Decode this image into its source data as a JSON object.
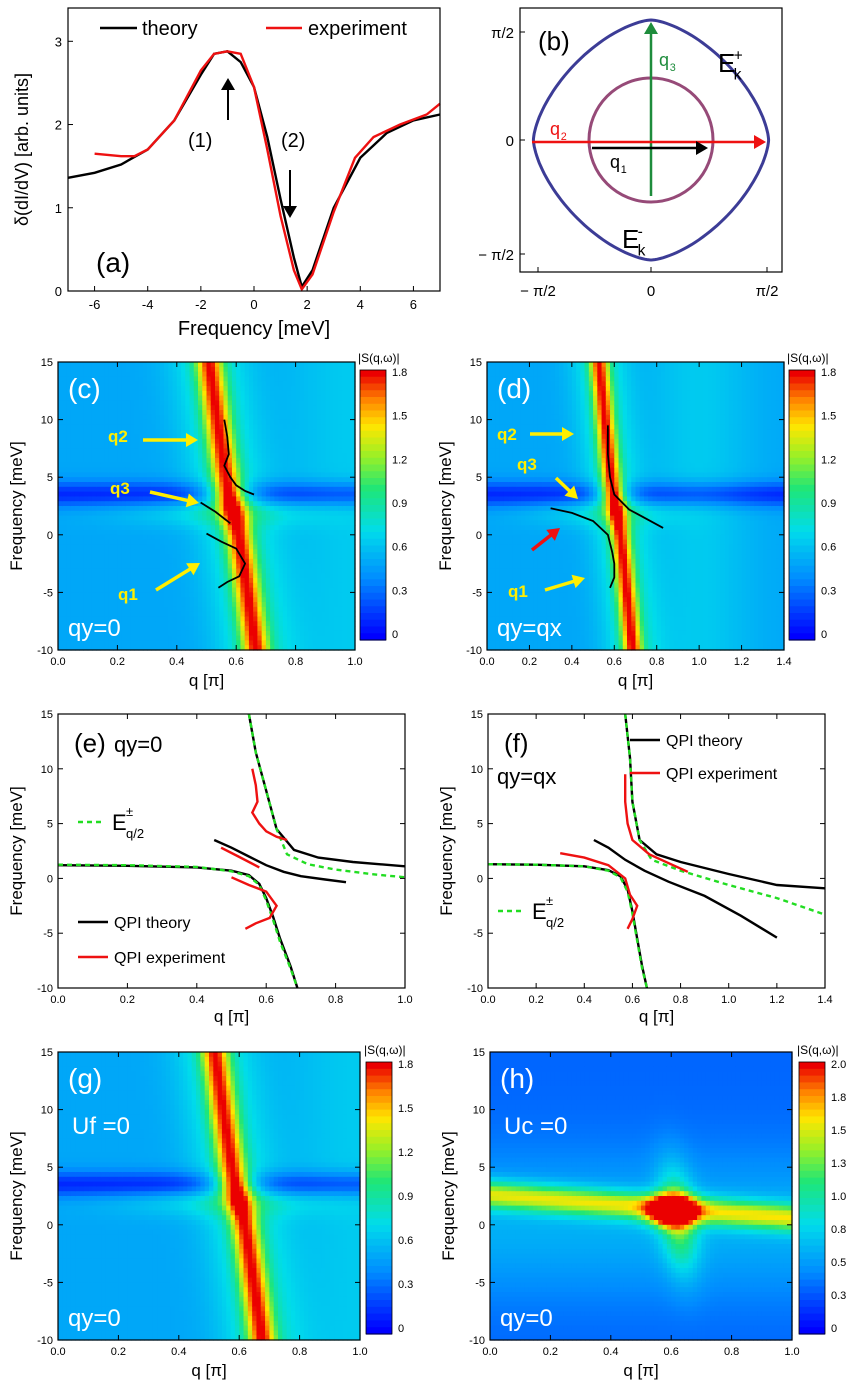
{
  "chart_data": [
    {
      "id": "a",
      "type": "line",
      "panel_label": "(a)",
      "xlabel": "Frequency [meV]",
      "ylabel": "δ(dI/dV) [arb. units]",
      "xlim": [
        -7,
        7
      ],
      "ylim": [
        0,
        3.4
      ],
      "xticks": [
        -6,
        -4,
        -2,
        0,
        2,
        4,
        6
      ],
      "yticks": [
        0,
        1,
        2,
        3
      ],
      "series": [
        {
          "name": "theory",
          "color": "#000000",
          "x": [
            -7,
            -6,
            -5,
            -4,
            -3,
            -2,
            -1.5,
            -1,
            -0.5,
            0,
            0.5,
            1,
            1.5,
            1.8,
            2.2,
            3,
            4,
            5,
            6,
            7
          ],
          "y": [
            1.36,
            1.42,
            1.52,
            1.7,
            2.05,
            2.6,
            2.85,
            2.88,
            2.75,
            2.45,
            1.85,
            1.1,
            0.4,
            0.05,
            0.25,
            1.0,
            1.6,
            1.9,
            2.05,
            2.12
          ]
        },
        {
          "name": "experiment",
          "color": "#ee1111",
          "x": [
            -6,
            -5,
            -4.5,
            -4,
            -3,
            -2,
            -1.5,
            -1,
            -0.5,
            0,
            0.5,
            1,
            1.5,
            1.8,
            2.2,
            3,
            3.8,
            4.5,
            5.5,
            6.5,
            7
          ],
          "y": [
            1.65,
            1.62,
            1.62,
            1.7,
            2.05,
            2.65,
            2.85,
            2.88,
            2.85,
            2.45,
            1.7,
            0.9,
            0.25,
            0.02,
            0.2,
            0.95,
            1.6,
            1.85,
            2.0,
            2.12,
            2.25
          ]
        }
      ],
      "annotations": [
        "(1)",
        "(2)"
      ],
      "legend": "top"
    },
    {
      "id": "b",
      "type": "diagram",
      "panel_label": "(b)",
      "xticks": [
        "− π/2",
        "0",
        "π/2"
      ],
      "yticks": [
        "π/2",
        "0",
        "− π/2"
      ],
      "labels": {
        "outer": "E",
        "outer_sub": "k",
        "outer_sup": "+",
        "inner": "E",
        "inner_sub": "k",
        "inner_sup": "-",
        "q1": "q",
        "q1_sub": "1",
        "q2": "q",
        "q2_sub": "2",
        "q3": "q",
        "q3_sub": "3"
      },
      "colors": {
        "outer": "#3c3c96",
        "inner": "#964a78",
        "q1": "#000000",
        "q2": "#ee1111",
        "q3": "#1e8c3c"
      }
    },
    {
      "id": "c",
      "type": "heatmap",
      "panel_label": "(c)",
      "xlabel": "q [π]",
      "ylabel": "Frequency [meV]",
      "xlim": [
        0,
        1.0
      ],
      "ylim": [
        -10,
        15
      ],
      "xticks": [
        "0.0",
        "0.2",
        "0.4",
        "0.6",
        "0.8",
        "1.0"
      ],
      "yticks": [
        "-10",
        "-5",
        "0",
        "5",
        "10",
        "15"
      ],
      "colorbar_title": "|S(q,ω)|",
      "colorbar_ticks": [
        "1.8",
        "1.5",
        "1.2",
        "0.9",
        "0.6",
        "0.3",
        "0"
      ],
      "corner_text": "qy=0",
      "arrows": [
        {
          "label": "q2",
          "color": "yellow"
        },
        {
          "label": "q3",
          "color": "yellow"
        },
        {
          "label": "q1",
          "color": "yellow"
        }
      ],
      "band_x0": 0.59,
      "band_k": 20,
      "overlay": [
        {
          "x": [
            0.56,
            0.57,
            0.575,
            0.56,
            0.58,
            0.6,
            0.63,
            0.66
          ],
          "y": [
            10,
            8.5,
            7,
            6,
            5,
            4.3,
            3.8,
            3.5
          ]
        },
        {
          "x": [
            0.48,
            0.53,
            0.58
          ],
          "y": [
            2.8,
            2.0,
            1.0
          ]
        },
        {
          "x": [
            0.5,
            0.55,
            0.6,
            0.63,
            0.61,
            0.57,
            0.54
          ],
          "y": [
            0.1,
            -0.6,
            -1.2,
            -2.5,
            -3.6,
            -4.1,
            -4.6
          ]
        }
      ]
    },
    {
      "id": "d",
      "type": "heatmap",
      "panel_label": "(d)",
      "xlabel": "q [π]",
      "ylabel": "Frequency [meV]",
      "xlim": [
        0,
        1.4
      ],
      "ylim": [
        -10,
        15
      ],
      "xticks": [
        "0.0",
        "0.2",
        "0.4",
        "0.6",
        "0.8",
        "1.0",
        "1.2",
        "1.4"
      ],
      "yticks": [
        "-10",
        "-5",
        "0",
        "5",
        "10",
        "15"
      ],
      "colorbar_title": "|S(q,ω)|",
      "colorbar_ticks": [
        "1.8",
        "1.5",
        "1.2",
        "0.9",
        "0.6",
        "0.3",
        "0"
      ],
      "corner_text": "qy=qx",
      "arrows": [
        {
          "label": "q2",
          "color": "yellow"
        },
        {
          "label": "q3",
          "color": "yellow"
        },
        {
          "label": "q1",
          "color": "yellow"
        },
        {
          "label": "",
          "color": "red"
        }
      ],
      "band_x0": 0.61,
      "band_k": 18,
      "overlay": [
        {
          "x": [
            0.57,
            0.57,
            0.58,
            0.6,
            0.67,
            0.76,
            0.83
          ],
          "y": [
            9.5,
            7,
            5,
            3.5,
            2.2,
            1.3,
            0.6
          ]
        },
        {
          "x": [
            0.3,
            0.4,
            0.5,
            0.57,
            0.59,
            0.6,
            0.6,
            0.58
          ],
          "y": [
            2.3,
            1.9,
            1.2,
            0,
            -1.5,
            -2.5,
            -3.7,
            -4.6
          ]
        }
      ]
    },
    {
      "id": "e",
      "type": "line",
      "panel_label": "(e)",
      "xlabel": "q [π]",
      "ylabel": "Frequency [meV]",
      "xlim": [
        0,
        1.0
      ],
      "ylim": [
        -10,
        15
      ],
      "xticks": [
        "0.0",
        "0.2",
        "0.4",
        "0.6",
        "0.8",
        "1.0"
      ],
      "yticks": [
        "-10",
        "-5",
        "0",
        "5",
        "10",
        "15"
      ],
      "corner_text": "qy=0",
      "series": [
        {
          "name": "QPI theory",
          "color": "#000000",
          "x": [
            0.0,
            0.2,
            0.4,
            0.5,
            0.55,
            0.58,
            0.6,
            0.62,
            0.64,
            0.67,
            0.69
          ],
          "y": [
            1.2,
            1.15,
            1.0,
            0.7,
            0.3,
            -0.5,
            -1.8,
            -3.5,
            -5.5,
            -8.0,
            -10.0
          ]
        },
        {
          "name": "QPI theory",
          "color": "#000000",
          "x": [
            0.55,
            0.57,
            0.6,
            0.63,
            0.68,
            0.75,
            0.85,
            1.0
          ],
          "y": [
            15,
            11.5,
            8.0,
            4.5,
            2.6,
            1.9,
            1.5,
            1.1
          ]
        },
        {
          "name": "QPI theory",
          "color": "#000000",
          "x": [
            0.45,
            0.5,
            0.55,
            0.6,
            0.65,
            0.7,
            0.77,
            0.83
          ],
          "y": [
            3.5,
            2.8,
            2.0,
            1.2,
            0.6,
            0.2,
            -0.1,
            -0.35
          ]
        },
        {
          "name": "E±q/2",
          "color": "#22dd22",
          "dashed": true,
          "x": [
            0.0,
            0.2,
            0.4,
            0.5,
            0.55,
            0.58,
            0.6,
            0.62,
            0.64,
            0.67,
            0.69
          ],
          "y": [
            1.25,
            1.2,
            1.05,
            0.65,
            0.2,
            -0.6,
            -2.0,
            -3.8,
            -5.8,
            -8.2,
            -10.0
          ]
        },
        {
          "name": "E±q/2",
          "color": "#22dd22",
          "dashed": true,
          "x": [
            0.55,
            0.57,
            0.6,
            0.63,
            0.66,
            0.72,
            0.8,
            0.9,
            1.0
          ],
          "y": [
            15,
            11.5,
            8.0,
            4.5,
            2.2,
            1.3,
            0.8,
            0.4,
            0.1
          ]
        },
        {
          "name": "QPI experiment",
          "color": "#ee1111",
          "x": [
            0.56,
            0.57,
            0.575,
            0.56,
            0.58,
            0.6,
            0.63,
            0.66
          ],
          "y": [
            10,
            8.5,
            7,
            6,
            5,
            4.3,
            3.8,
            3.5
          ]
        },
        {
          "name": "QPI experiment",
          "color": "#ee1111",
          "x": [
            0.47,
            0.52,
            0.58
          ],
          "y": [
            2.8,
            2.0,
            1.0
          ]
        },
        {
          "name": "QPI experiment",
          "color": "#ee1111",
          "x": [
            0.5,
            0.55,
            0.6,
            0.63,
            0.61,
            0.57,
            0.54
          ],
          "y": [
            0.1,
            -0.6,
            -1.2,
            -2.5,
            -3.6,
            -4.1,
            -4.6
          ]
        }
      ],
      "legend_items": [
        {
          "label": "E",
          "sup": "±",
          "sub": "q/2",
          "color": "#22dd22",
          "dashed": true
        },
        {
          "label": "QPI theory",
          "color": "#000000"
        },
        {
          "label": "QPI experiment",
          "color": "#ee1111"
        }
      ]
    },
    {
      "id": "f",
      "type": "line",
      "panel_label": "(f)",
      "xlabel": "q [π]",
      "ylabel": "Frequency [meV]",
      "xlim": [
        0,
        1.4
      ],
      "ylim": [
        -10,
        15
      ],
      "xticks": [
        "0.0",
        "0.2",
        "0.4",
        "0.6",
        "0.8",
        "1.0",
        "1.2",
        "1.4"
      ],
      "yticks": [
        "-10",
        "-5",
        "0",
        "5",
        "10",
        "15"
      ],
      "corner_text": "qy=qx",
      "series": [
        {
          "name": "QPI theory",
          "color": "#000000",
          "x": [
            0.0,
            0.2,
            0.4,
            0.5,
            0.55,
            0.58,
            0.6,
            0.62,
            0.64,
            0.66
          ],
          "y": [
            1.3,
            1.25,
            1.1,
            0.75,
            0.2,
            -1.0,
            -3.0,
            -5.5,
            -8.0,
            -10.0
          ]
        },
        {
          "name": "QPI theory",
          "color": "#000000",
          "x": [
            0.57,
            0.59,
            0.6,
            0.63,
            0.7,
            0.8,
            1.0,
            1.2,
            1.4
          ],
          "y": [
            15,
            11.0,
            7.0,
            3.5,
            2.2,
            1.5,
            0.4,
            -0.6,
            -0.9
          ]
        },
        {
          "name": "QPI theory",
          "color": "#000000",
          "x": [
            0.44,
            0.5,
            0.57,
            0.65,
            0.75,
            0.9,
            1.05,
            1.2
          ],
          "y": [
            3.5,
            2.8,
            1.7,
            0.7,
            -0.3,
            -1.6,
            -3.4,
            -5.4
          ]
        },
        {
          "name": "E±q/2",
          "color": "#22dd22",
          "dashed": true,
          "x": [
            0.0,
            0.2,
            0.4,
            0.5,
            0.55,
            0.58,
            0.6,
            0.62,
            0.64,
            0.66
          ],
          "y": [
            1.3,
            1.25,
            1.1,
            0.7,
            0.1,
            -1.2,
            -3.2,
            -5.7,
            -8.2,
            -10.0
          ]
        },
        {
          "name": "E±q/2",
          "color": "#22dd22",
          "dashed": true,
          "x": [
            0.57,
            0.59,
            0.6,
            0.63,
            0.68,
            0.8,
            1.0,
            1.2,
            1.4
          ],
          "y": [
            15,
            11.0,
            7.0,
            3.5,
            1.7,
            0.7,
            -0.6,
            -1.8,
            -3.3
          ]
        },
        {
          "name": "QPI experiment",
          "color": "#ee1111",
          "x": [
            0.57,
            0.57,
            0.58,
            0.6,
            0.67,
            0.76,
            0.83
          ],
          "y": [
            9.5,
            7,
            5,
            3.5,
            2.2,
            1.3,
            0.6
          ]
        },
        {
          "name": "QPI experiment",
          "color": "#ee1111",
          "x": [
            0.3,
            0.4,
            0.5,
            0.57,
            0.59,
            0.62,
            0.6,
            0.58
          ],
          "y": [
            2.3,
            1.9,
            1.2,
            0,
            -1.5,
            -2.5,
            -3.7,
            -4.6
          ]
        }
      ],
      "legend_items": [
        {
          "label": "QPI theory",
          "color": "#000000"
        },
        {
          "label": "QPI experiment",
          "color": "#ee1111"
        },
        {
          "label": "E",
          "sup": "±",
          "sub": "q/2",
          "color": "#22dd22",
          "dashed": true
        }
      ]
    },
    {
      "id": "g",
      "type": "heatmap",
      "panel_label": "(g)",
      "xlabel": "q [π]",
      "ylabel": "Frequency [meV]",
      "xlim": [
        0,
        1.0
      ],
      "ylim": [
        -10,
        15
      ],
      "xticks": [
        "0.0",
        "0.2",
        "0.4",
        "0.6",
        "0.8",
        "1.0"
      ],
      "yticks": [
        "-10",
        "-5",
        "0",
        "5",
        "10",
        "15"
      ],
      "colorbar_title": "|S(q,ω)|",
      "colorbar_ticks": [
        "1.8",
        "1.5",
        "1.2",
        "0.9",
        "0.6",
        "0.3",
        "0"
      ],
      "corner_text": "qy=0",
      "extra_text": "Uf =0",
      "band_x0": 0.6,
      "band_k": 22
    },
    {
      "id": "h",
      "type": "heatmap",
      "panel_label": "(h)",
      "xlabel": "q [π]",
      "ylabel": "Frequency [meV]",
      "xlim": [
        0,
        1.0
      ],
      "ylim": [
        -10,
        15
      ],
      "xticks": [
        "0.0",
        "0.2",
        "0.4",
        "0.6",
        "0.8",
        "1.0"
      ],
      "yticks": [
        "-10",
        "-5",
        "0",
        "5",
        "10",
        "15"
      ],
      "colorbar_title": "|S(q,ω)|",
      "colorbar_ticks": [
        "2.0",
        "1.8",
        "1.5",
        "1.3",
        "1.0",
        "0.8",
        "0.5",
        "0.3",
        "0"
      ],
      "corner_text": "qy=0",
      "extra_text": "Uc =0",
      "hotspot": {
        "x": 0.6,
        "y": 1.2
      }
    }
  ]
}
